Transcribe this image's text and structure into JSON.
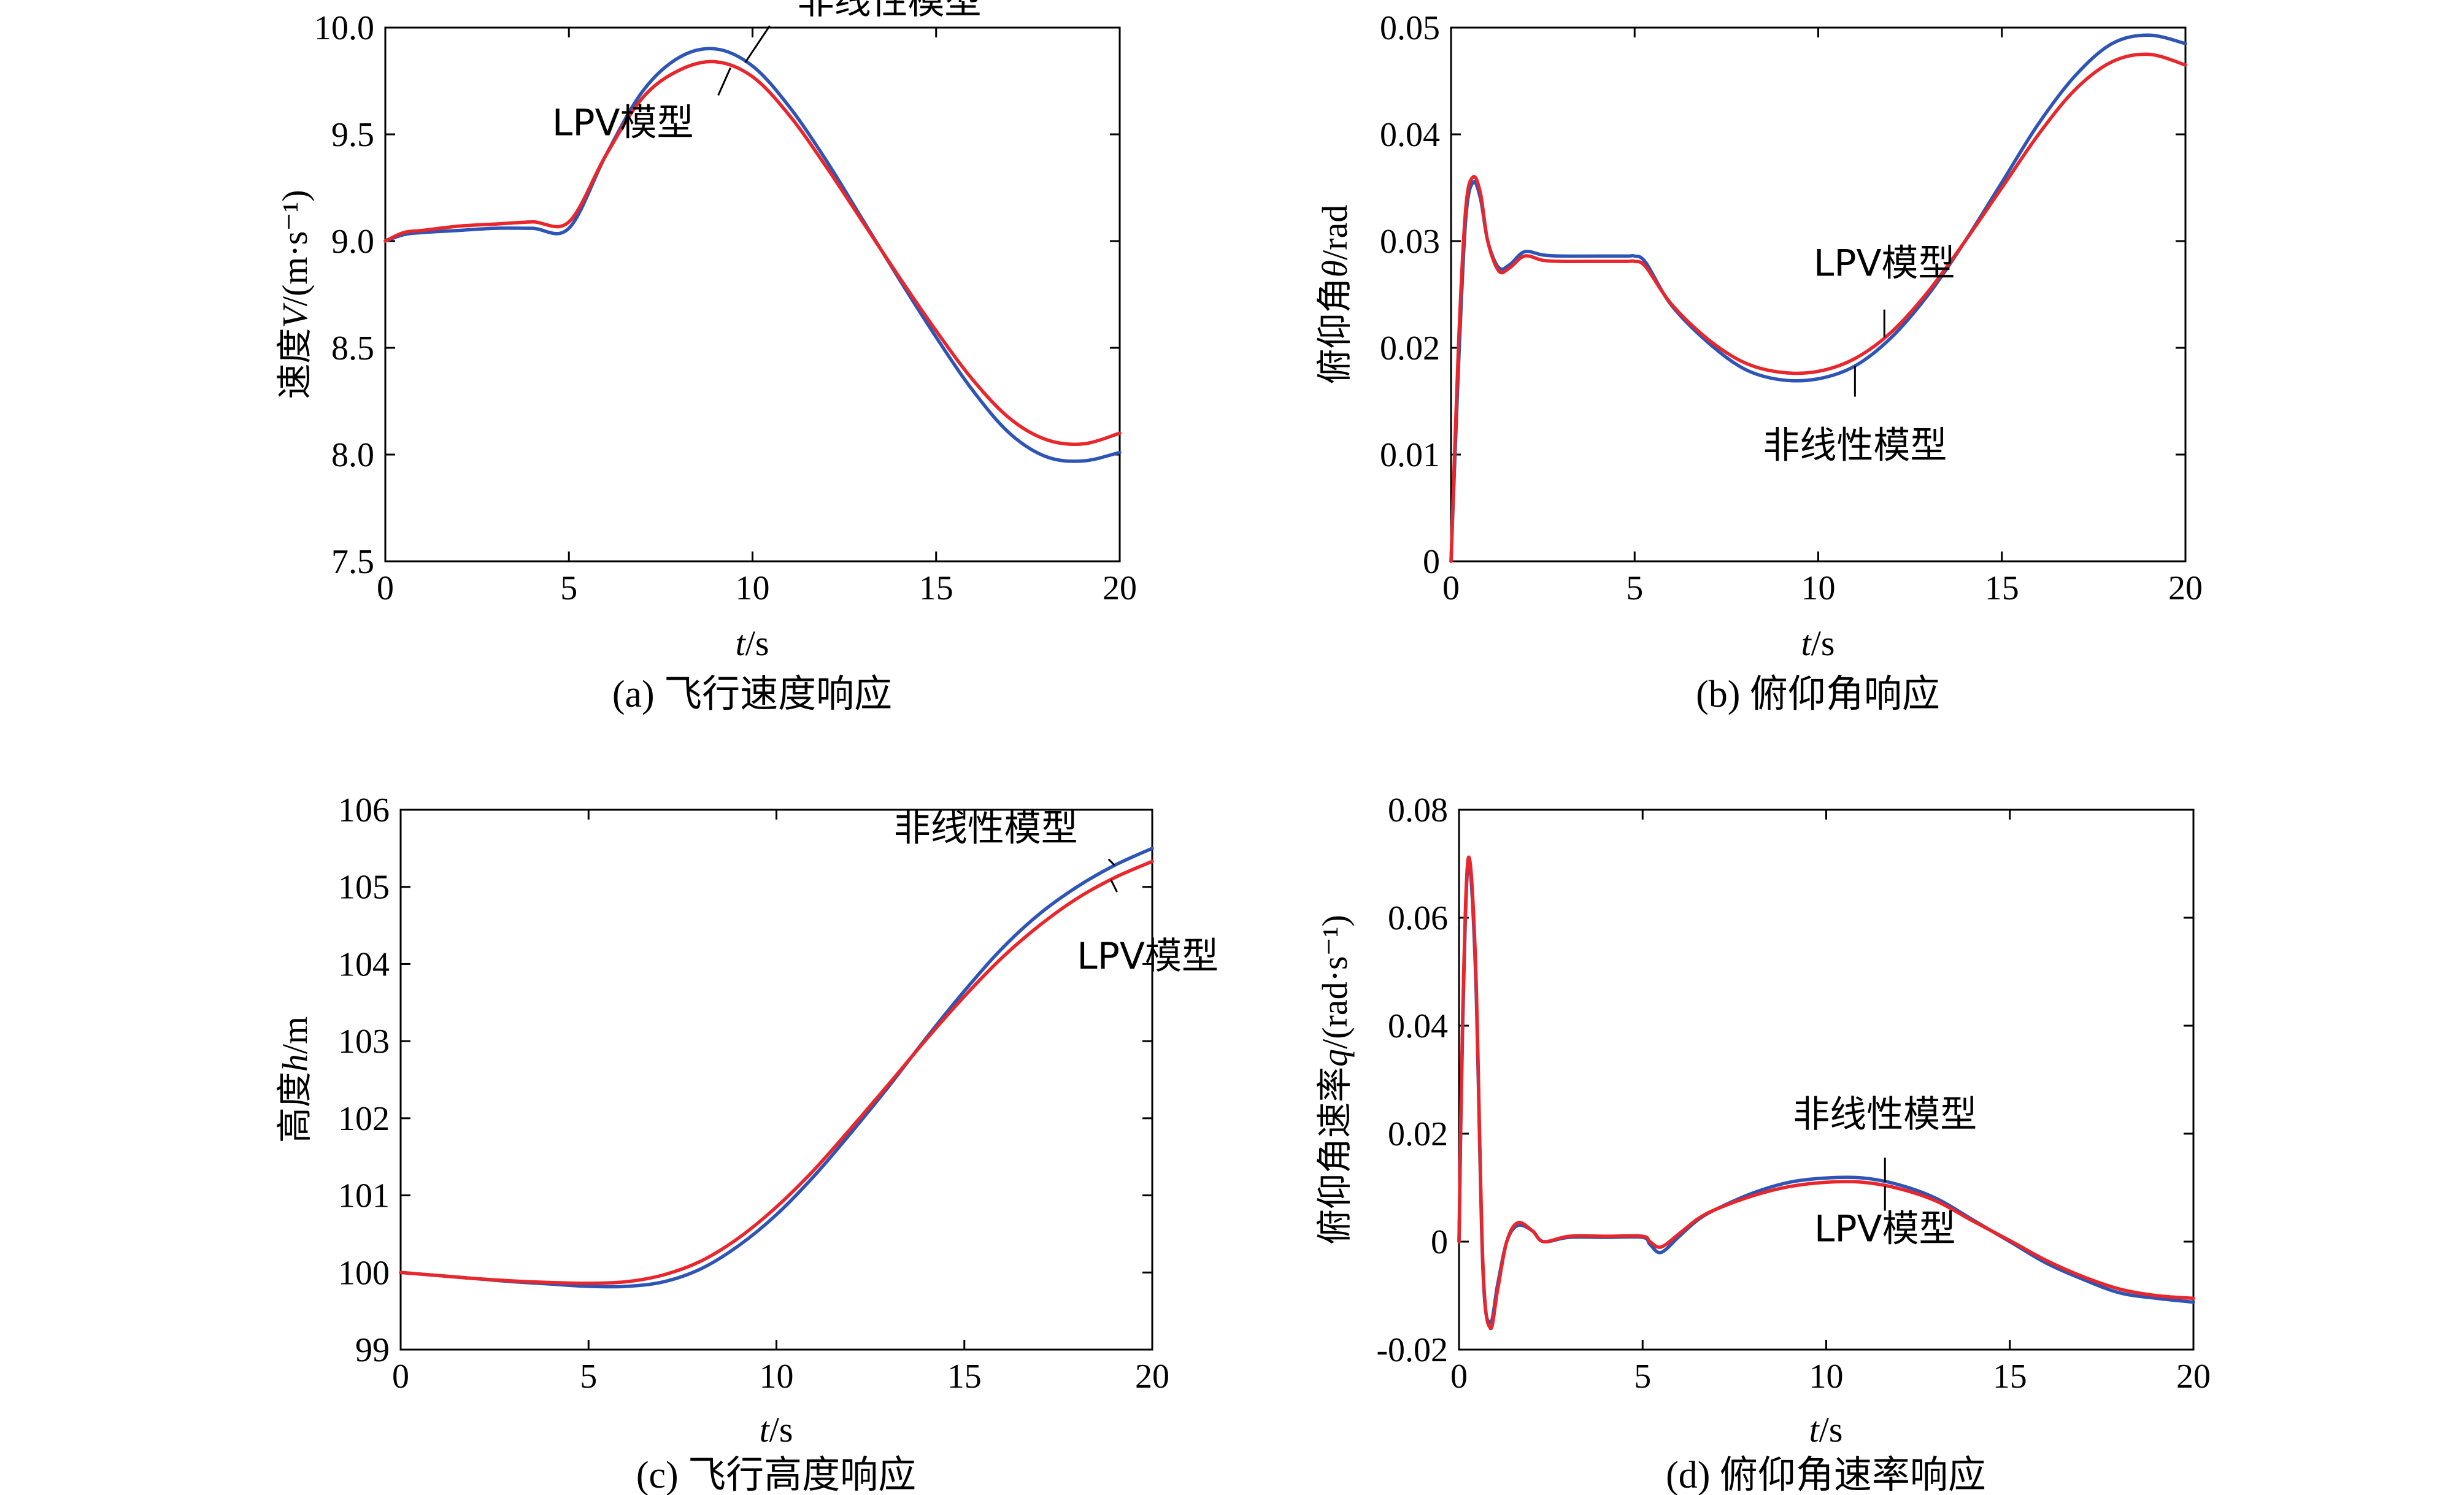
{
  "colors": {
    "nonlinear": "#2E55B5",
    "lpv": "#E8262B"
  },
  "chart_data": [
    {
      "type": "line",
      "caption": "(a) 飞行速度响应",
      "xlabel_var": "t",
      "xlabel_unit": "/s",
      "ylabel_prefix": "速度",
      "ylabel_var": "V",
      "ylabel_unit": "/(m·s⁻¹)",
      "xlim": [
        0,
        20
      ],
      "ylim": [
        7.5,
        10.0
      ],
      "xticks": [
        0,
        5,
        10,
        15,
        20
      ],
      "yticks": [
        7.5,
        8.0,
        8.5,
        9.0,
        9.5,
        10.0
      ],
      "yticklabels": [
        "7.5",
        "8.0",
        "8.5",
        "9.0",
        "9.5",
        "10.0"
      ],
      "grid": false,
      "series": [
        {
          "name": "非线性模型",
          "color": "#2E55B5",
          "x": [
            0,
            0.5,
            1,
            2,
            3,
            4,
            5,
            6,
            7,
            8,
            9,
            10,
            11,
            12,
            13,
            14,
            15,
            16,
            17,
            18,
            19,
            20
          ],
          "y": [
            9.0,
            9.03,
            9.04,
            9.05,
            9.06,
            9.06,
            9.06,
            9.4,
            9.7,
            9.86,
            9.9,
            9.82,
            9.63,
            9.38,
            9.1,
            8.82,
            8.55,
            8.3,
            8.1,
            7.99,
            7.97,
            8.01
          ]
        },
        {
          "name": "LPV模型",
          "color": "#E8262B",
          "x": [
            0,
            0.5,
            1,
            2,
            3,
            4,
            5,
            6,
            7,
            8,
            9,
            10,
            11,
            12,
            13,
            14,
            15,
            16,
            17,
            18,
            19,
            20
          ],
          "y": [
            9.0,
            9.04,
            9.05,
            9.07,
            9.08,
            9.09,
            9.09,
            9.4,
            9.67,
            9.8,
            9.84,
            9.77,
            9.59,
            9.35,
            9.09,
            8.83,
            8.58,
            8.35,
            8.17,
            8.07,
            8.05,
            8.1
          ]
        }
      ],
      "annotations": [
        {
          "text": "非线性模型",
          "series": "非线性模型",
          "at_x": 9.8
        },
        {
          "text": "LPV模型",
          "series": "LPV模型",
          "at_x": 9.4
        }
      ]
    },
    {
      "type": "line",
      "caption": "(b) 俯仰角响应",
      "xlabel_var": "t",
      "xlabel_unit": "/s",
      "ylabel_prefix": "俯仰角",
      "ylabel_var": "θ",
      "ylabel_unit": "/rad",
      "xlim": [
        0,
        20
      ],
      "ylim": [
        0,
        0.05
      ],
      "xticks": [
        0,
        5,
        10,
        15,
        20
      ],
      "yticks": [
        0,
        0.01,
        0.02,
        0.03,
        0.04,
        0.05
      ],
      "yticklabels": [
        "0",
        "0.01",
        "0.02",
        "0.03",
        "0.04",
        "0.05"
      ],
      "grid": false,
      "series": [
        {
          "name": "非线性模型",
          "color": "#2E55B5",
          "x": [
            0,
            0.2,
            0.4,
            0.6,
            0.8,
            1.0,
            1.3,
            1.6,
            2.0,
            2.5,
            3,
            4,
            4.8,
            5.0,
            5.3,
            6,
            7,
            8,
            9,
            10,
            11,
            12,
            13,
            14,
            15,
            16,
            17,
            18,
            19,
            20
          ],
          "y": [
            0,
            0.018,
            0.032,
            0.0355,
            0.034,
            0.03,
            0.0275,
            0.0278,
            0.029,
            0.0287,
            0.0286,
            0.0286,
            0.0286,
            0.0286,
            0.028,
            0.024,
            0.0205,
            0.018,
            0.017,
            0.0171,
            0.0183,
            0.021,
            0.025,
            0.03,
            0.0355,
            0.041,
            0.0455,
            0.0485,
            0.0493,
            0.0485
          ]
        },
        {
          "name": "LPV模型",
          "color": "#E8262B",
          "x": [
            0,
            0.2,
            0.4,
            0.6,
            0.8,
            1.0,
            1.3,
            1.6,
            2.0,
            2.5,
            3,
            4,
            4.8,
            5.0,
            5.3,
            6,
            7,
            8,
            9,
            10,
            11,
            12,
            13,
            14,
            15,
            16,
            17,
            18,
            19,
            20
          ],
          "y": [
            0,
            0.02,
            0.033,
            0.036,
            0.0345,
            0.03,
            0.0272,
            0.0275,
            0.0286,
            0.0282,
            0.0281,
            0.0281,
            0.0281,
            0.0281,
            0.0276,
            0.0241,
            0.0208,
            0.0186,
            0.0177,
            0.0178,
            0.019,
            0.0215,
            0.0253,
            0.03,
            0.035,
            0.04,
            0.0442,
            0.0468,
            0.0475,
            0.0465
          ]
        }
      ],
      "annotations": [
        {
          "text": "LPV模型",
          "series": "LPV模型",
          "at_x": 11.8
        },
        {
          "text": "非线性模型",
          "series": "非线性模型",
          "at_x": 11.0
        }
      ]
    },
    {
      "type": "line",
      "caption": "(c) 飞行高度响应",
      "xlabel_var": "t",
      "xlabel_unit": "/s",
      "ylabel_prefix": "高度",
      "ylabel_var": "h",
      "ylabel_unit": "/m",
      "xlim": [
        0,
        20
      ],
      "ylim": [
        99,
        106
      ],
      "xticks": [
        0,
        5,
        10,
        15,
        20
      ],
      "yticks": [
        99,
        100,
        101,
        102,
        103,
        104,
        105,
        106
      ],
      "yticklabels": [
        "99",
        "100",
        "101",
        "102",
        "103",
        "104",
        "105",
        "106"
      ],
      "grid": false,
      "series": [
        {
          "name": "非线性模型",
          "color": "#2E55B5",
          "x": [
            0,
            1,
            2,
            3,
            4,
            5,
            6,
            7,
            8,
            9,
            10,
            11,
            12,
            13,
            14,
            15,
            16,
            17,
            18,
            19,
            20
          ],
          "y": [
            100.0,
            99.96,
            99.92,
            99.88,
            99.85,
            99.82,
            99.82,
            99.88,
            100.05,
            100.35,
            100.75,
            101.25,
            101.82,
            102.42,
            103.05,
            103.65,
            104.2,
            104.65,
            105.0,
            105.28,
            105.5
          ]
        },
        {
          "name": "LPV模型",
          "color": "#E8262B",
          "x": [
            0,
            1,
            2,
            3,
            4,
            5,
            6,
            7,
            8,
            9,
            10,
            11,
            12,
            13,
            14,
            15,
            16,
            17,
            18,
            19,
            20
          ],
          "y": [
            100.0,
            99.96,
            99.92,
            99.89,
            99.87,
            99.86,
            99.88,
            99.97,
            100.15,
            100.45,
            100.85,
            101.33,
            101.88,
            102.45,
            103.03,
            103.58,
            104.08,
            104.5,
            104.85,
            105.12,
            105.33
          ]
        }
      ],
      "annotations": [
        {
          "text": "非线性模型",
          "series": "非线性模型",
          "at_x": 19.0
        },
        {
          "text": "LPV模型",
          "series": "LPV模型",
          "at_x": 18.9
        }
      ]
    },
    {
      "type": "line",
      "caption": "(d) 俯仰角速率响应",
      "xlabel_var": "t",
      "xlabel_unit": "/s",
      "ylabel_prefix": "俯仰角速率",
      "ylabel_var": "q",
      "ylabel_unit": "/(rad·s⁻¹)",
      "xlim": [
        0,
        20
      ],
      "ylim": [
        -0.02,
        0.08
      ],
      "xticks": [
        0,
        5,
        10,
        15,
        20
      ],
      "yticks": [
        -0.02,
        0,
        0.02,
        0.04,
        0.06,
        0.08
      ],
      "yticklabels": [
        "-0.02",
        "0",
        "0.02",
        "0.04",
        "0.06",
        "0.08"
      ],
      "grid": false,
      "series": [
        {
          "name": "非线性模型",
          "color": "#2E55B5",
          "x": [
            0,
            0.1,
            0.25,
            0.45,
            0.65,
            0.85,
            1.05,
            1.3,
            1.6,
            2.0,
            2.3,
            3.0,
            4.0,
            5.0,
            5.2,
            5.5,
            6.0,
            6.5,
            7,
            8,
            9,
            10,
            11,
            12,
            13,
            14,
            15,
            16,
            17,
            18,
            19,
            20
          ],
          "y": [
            0,
            0.04,
            0.07,
            0.05,
            -0.005,
            -0.015,
            -0.008,
            0.0,
            0.003,
            0.002,
            0.0,
            0.0008,
            0.0008,
            0.0008,
            -0.0005,
            -0.002,
            0.001,
            0.004,
            0.006,
            0.009,
            0.011,
            0.0118,
            0.0118,
            0.0105,
            0.008,
            0.004,
            0.0,
            -0.004,
            -0.007,
            -0.0095,
            -0.0105,
            -0.0112
          ]
        },
        {
          "name": "LPV模型",
          "color": "#E8262B",
          "x": [
            0,
            0.1,
            0.25,
            0.45,
            0.65,
            0.85,
            1.05,
            1.3,
            1.6,
            2.0,
            2.3,
            3.0,
            4.0,
            5.0,
            5.2,
            5.5,
            6.0,
            6.5,
            7,
            8,
            9,
            10,
            11,
            12,
            13,
            14,
            15,
            16,
            17,
            18,
            19,
            20
          ],
          "y": [
            0,
            0.042,
            0.071,
            0.052,
            -0.004,
            -0.016,
            -0.009,
            0.0,
            0.0035,
            0.002,
            0.0,
            0.001,
            0.001,
            0.001,
            0.0,
            -0.001,
            0.0015,
            0.0042,
            0.006,
            0.0085,
            0.0102,
            0.011,
            0.011,
            0.0098,
            0.0075,
            0.0038,
            0.0002,
            -0.0035,
            -0.0065,
            -0.0088,
            -0.01,
            -0.0105
          ]
        }
      ],
      "annotations": [
        {
          "text": "非线性模型",
          "series": "非线性模型",
          "at_x": 11.6
        },
        {
          "text": "LPV模型",
          "series": "LPV模型",
          "at_x": 11.6
        }
      ]
    }
  ]
}
